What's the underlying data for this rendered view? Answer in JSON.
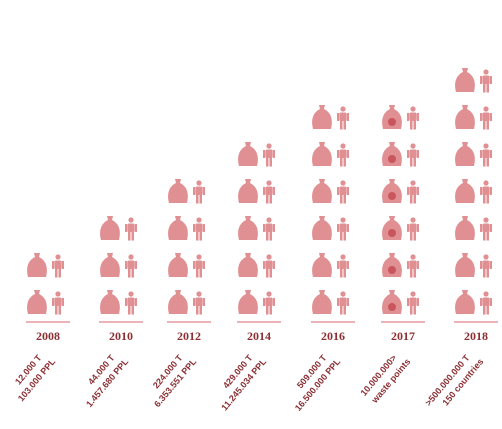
{
  "chart_data": {
    "type": "pictogram",
    "categories": [
      "2008",
      "2010",
      "2012",
      "2014",
      "2016",
      "2017",
      "2018"
    ],
    "series": [
      {
        "values": [
          2,
          3,
          4,
          5,
          6,
          6,
          7
        ]
      }
    ],
    "line1": [
      "12.000 T",
      "44.000 T",
      "224.000 T",
      "429.000 T",
      "509.000 T",
      "10.000.000>",
      ">500.000.000 T"
    ],
    "line2": [
      "103.000 PPL",
      "1.457.680 PPL",
      "6.353.551 PPL",
      "11.245.034 PPL",
      "16.500.000 PPL",
      "waste points",
      "150 countries"
    ],
    "colors": {
      "icon": "#e08f93",
      "icon_dot": "#c9565c",
      "text": "#8b2f33",
      "baseline": "#e39aa0"
    },
    "title": "",
    "xlabel": "",
    "ylabel": ""
  }
}
